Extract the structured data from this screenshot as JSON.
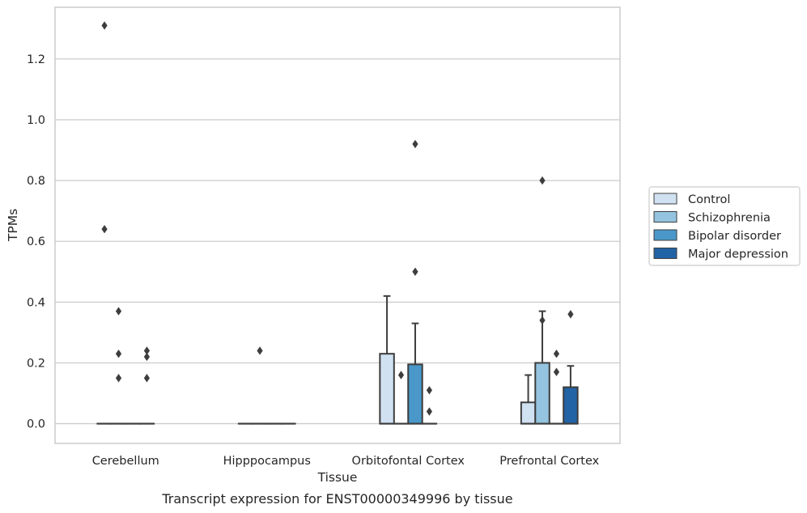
{
  "chart_data": {
    "type": "box",
    "xlabel": "Tissue",
    "ylabel": "TPMs",
    "caption": "Transcript expression for ENST00000349996 by tissue",
    "categories": [
      "Cerebellum",
      "Hipppocampus",
      "Orbitofontal Cortex",
      "Prefrontal Cortex"
    ],
    "ylim": [
      -0.065,
      1.37
    ],
    "yticks": [
      0.0,
      0.2,
      0.4,
      0.6,
      0.8,
      1.0,
      1.2
    ],
    "ytick_labels": [
      "0.0",
      "0.2",
      "0.4",
      "0.6",
      "0.8",
      "1.0",
      "1.2"
    ],
    "grid": "horizontal",
    "legend_position": "right",
    "legend_entries": [
      "Control",
      "Schizophrenia",
      "Bipolar disorder",
      "Major depression"
    ],
    "colors": [
      "#d0e1f2",
      "#94c4df",
      "#4a98c9",
      "#2263a5"
    ],
    "series": [
      {
        "name": "Control",
        "boxes": [
          {
            "q1": 0,
            "median": 0,
            "q3": 0,
            "whislo": 0,
            "whishi": 0,
            "fliers": [
              1.31,
              0.64
            ]
          },
          {
            "q1": 0,
            "median": 0,
            "q3": 0,
            "whislo": 0,
            "whishi": 0,
            "fliers": []
          },
          {
            "q1": 0,
            "median": 0,
            "q3": 0.23,
            "whislo": 0,
            "whishi": 0.42,
            "fliers": []
          },
          {
            "q1": 0,
            "median": 0,
            "q3": 0.07,
            "whislo": 0,
            "whishi": 0.16,
            "fliers": []
          }
        ]
      },
      {
        "name": "Schizophrenia",
        "boxes": [
          {
            "q1": 0,
            "median": 0,
            "q3": 0,
            "whislo": 0,
            "whishi": 0,
            "fliers": [
              0.37,
              0.23,
              0.15
            ]
          },
          {
            "q1": 0,
            "median": 0,
            "q3": 0,
            "whislo": 0,
            "whishi": 0,
            "fliers": [
              0.24
            ]
          },
          {
            "q1": 0,
            "median": 0,
            "q3": 0,
            "whislo": 0,
            "whishi": 0,
            "fliers": [
              0.16
            ]
          },
          {
            "q1": 0,
            "median": 0,
            "q3": 0.2,
            "whislo": 0,
            "whishi": 0.37,
            "fliers": [
              0.8,
              0.34
            ]
          }
        ]
      },
      {
        "name": "Bipolar disorder",
        "boxes": [
          {
            "q1": 0,
            "median": 0,
            "q3": 0,
            "whislo": 0,
            "whishi": 0,
            "fliers": []
          },
          {
            "q1": 0,
            "median": 0,
            "q3": 0,
            "whislo": 0,
            "whishi": 0,
            "fliers": []
          },
          {
            "q1": 0,
            "median": 0,
            "q3": 0.195,
            "whislo": 0,
            "whishi": 0.33,
            "fliers": [
              0.92,
              0.5
            ]
          },
          {
            "q1": 0,
            "median": 0,
            "q3": 0,
            "whislo": 0,
            "whishi": 0,
            "fliers": [
              0.23,
              0.17
            ]
          }
        ]
      },
      {
        "name": "Major depression",
        "boxes": [
          {
            "q1": 0,
            "median": 0,
            "q3": 0,
            "whislo": 0,
            "whishi": 0,
            "fliers": [
              0.24,
              0.22,
              0.15
            ]
          },
          {
            "q1": 0,
            "median": 0,
            "q3": 0,
            "whislo": 0,
            "whishi": 0,
            "fliers": []
          },
          {
            "q1": 0,
            "median": 0,
            "q3": 0,
            "whislo": 0,
            "whishi": 0,
            "fliers": [
              0.11,
              0.04
            ]
          },
          {
            "q1": 0,
            "median": 0,
            "q3": 0.12,
            "whislo": 0,
            "whishi": 0.19,
            "fliers": [
              0.36
            ]
          }
        ]
      }
    ]
  }
}
